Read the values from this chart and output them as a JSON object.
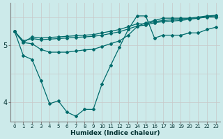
{
  "xlabel": "Humidex (Indice chaleur)",
  "bg_color": "#cceaea",
  "line_color": "#006b6b",
  "vgrid_color": "#c8c8c8",
  "hgrid_color": "#c8c8c8",
  "xlim": [
    -0.5,
    23.5
  ],
  "ylim": [
    3.65,
    5.75
  ],
  "yticks": [
    4,
    5
  ],
  "xticks": [
    0,
    1,
    2,
    3,
    4,
    5,
    6,
    7,
    8,
    9,
    10,
    11,
    12,
    13,
    14,
    15,
    16,
    17,
    18,
    19,
    20,
    21,
    22,
    23
  ],
  "lines": [
    [
      5.25,
      4.82,
      4.75,
      4.38,
      3.97,
      4.02,
      3.82,
      3.75,
      3.87,
      3.87,
      4.32,
      4.65,
      4.97,
      5.28,
      5.52,
      5.52,
      5.13,
      5.18,
      5.18,
      5.18,
      5.22,
      5.22,
      5.28,
      5.32
    ],
    [
      5.25,
      5.05,
      5.15,
      5.13,
      5.14,
      5.15,
      5.16,
      5.17,
      5.18,
      5.19,
      5.22,
      5.25,
      5.28,
      5.33,
      5.38,
      5.38,
      5.42,
      5.44,
      5.45,
      5.46,
      5.48,
      5.5,
      5.52,
      5.53
    ],
    [
      5.25,
      5.08,
      5.12,
      5.1,
      5.11,
      5.12,
      5.13,
      5.14,
      5.15,
      5.16,
      5.18,
      5.21,
      5.24,
      5.29,
      5.34,
      5.36,
      5.4,
      5.42,
      5.43,
      5.44,
      5.46,
      5.48,
      5.51,
      5.52
    ],
    [
      5.25,
      5.05,
      5.03,
      4.93,
      4.88,
      4.88,
      4.88,
      4.9,
      4.92,
      4.93,
      4.98,
      5.03,
      5.08,
      5.18,
      5.33,
      5.4,
      5.44,
      5.48,
      5.48,
      5.48,
      5.48,
      5.48,
      5.5,
      5.5
    ]
  ]
}
